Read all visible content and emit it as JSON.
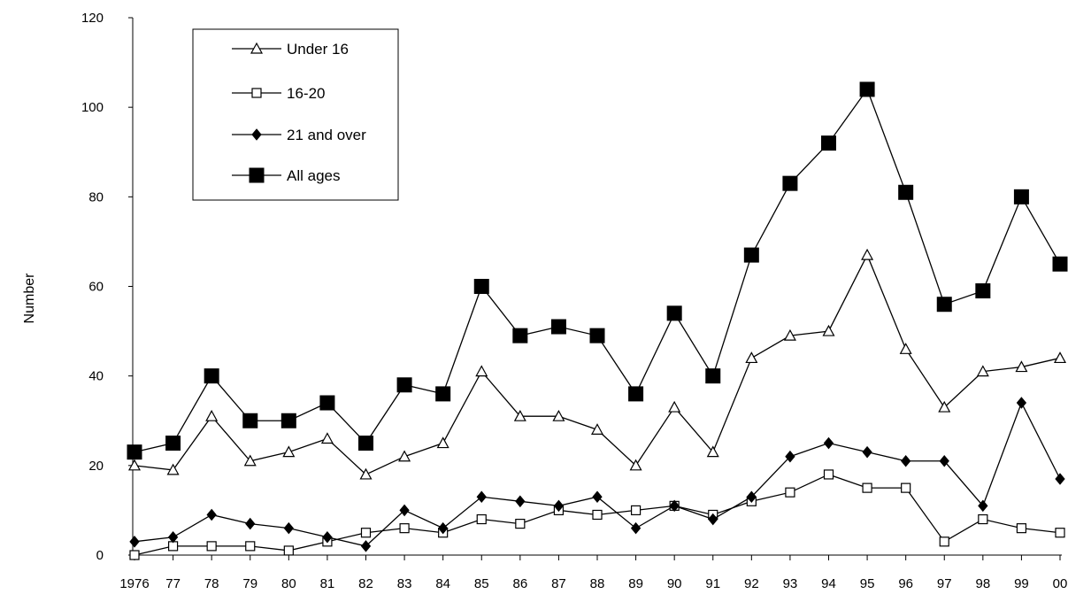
{
  "chart_data": {
    "type": "line",
    "title": "",
    "xlabel": "",
    "ylabel": "Number",
    "ylim": [
      0,
      120
    ],
    "yticks": [
      0,
      20,
      40,
      60,
      80,
      100,
      120
    ],
    "categories": [
      "1976",
      "77",
      "78",
      "79",
      "80",
      "81",
      "82",
      "83",
      "84",
      "85",
      "86",
      "87",
      "88",
      "89",
      "90",
      "91",
      "92",
      "93",
      "94",
      "95",
      "96",
      "97",
      "98",
      "99",
      "00"
    ],
    "grid": false,
    "legend_position": "top-left",
    "series": [
      {
        "name": "Under 16",
        "marker": "triangle-open",
        "values": [
          20,
          19,
          31,
          21,
          23,
          26,
          18,
          22,
          25,
          41,
          31,
          31,
          28,
          20,
          33,
          23,
          44,
          49,
          50,
          67,
          46,
          33,
          41,
          42,
          44
        ]
      },
      {
        "name": "16-20",
        "marker": "square-open",
        "values": [
          0,
          2,
          2,
          2,
          1,
          3,
          5,
          6,
          5,
          8,
          7,
          10,
          9,
          10,
          11,
          9,
          12,
          14,
          18,
          15,
          15,
          3,
          8,
          6,
          5
        ]
      },
      {
        "name": "21 and over",
        "marker": "diamond-filled",
        "values": [
          3,
          4,
          9,
          7,
          6,
          4,
          2,
          10,
          6,
          13,
          12,
          11,
          13,
          6,
          11,
          8,
          13,
          22,
          25,
          23,
          21,
          21,
          11,
          34,
          17
        ]
      },
      {
        "name": "All ages",
        "marker": "square-filled",
        "values": [
          23,
          25,
          40,
          30,
          30,
          34,
          25,
          38,
          36,
          60,
          49,
          51,
          49,
          36,
          54,
          40,
          67,
          83,
          92,
          104,
          81,
          56,
          59,
          80,
          65
        ]
      }
    ]
  }
}
